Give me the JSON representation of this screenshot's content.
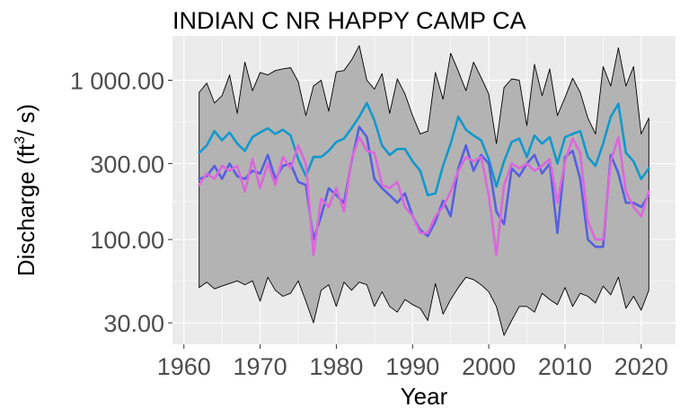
{
  "chart_data": {
    "type": "line",
    "title": "INDIAN C NR HAPPY CAMP CA",
    "xlabel": "Year",
    "ylabel_prefix": "Discharge (ft",
    "ylabel_sup": "3",
    "ylabel_suffix": "/ s)",
    "y_scale": "log",
    "xlim": [
      1958.5,
      2024.5
    ],
    "ylim": [
      22,
      1900
    ],
    "x_ticks": [
      1960,
      1970,
      1980,
      1990,
      2000,
      2010,
      2020
    ],
    "x_tick_labels": [
      "1960",
      "1970",
      "1980",
      "1990",
      "2000",
      "2010",
      "2020"
    ],
    "y_ticks": [
      30,
      100,
      300,
      1000
    ],
    "y_tick_labels": [
      "30.00",
      "100.00",
      "300.00",
      "1 000.00"
    ],
    "grid": true,
    "legend": "none",
    "colors": {
      "panel": "#ebebeb",
      "grid": "#ffffff",
      "band_fill": "#b3b3b3",
      "band_edge": "#000000",
      "teal": "#1199cc",
      "blue": "#5560e0",
      "magenta": "#dd66dd"
    },
    "x": [
      1962,
      1963,
      1964,
      1965,
      1966,
      1967,
      1968,
      1969,
      1970,
      1971,
      1972,
      1973,
      1974,
      1975,
      1976,
      1977,
      1978,
      1979,
      1980,
      1981,
      1982,
      1983,
      1984,
      1985,
      1986,
      1987,
      1988,
      1989,
      1990,
      1991,
      1992,
      1993,
      1994,
      1995,
      1996,
      1997,
      1998,
      1999,
      2000,
      2001,
      2002,
      2003,
      2004,
      2005,
      2006,
      2007,
      2008,
      2009,
      2010,
      2011,
      2012,
      2013,
      2014,
      2015,
      2016,
      2017,
      2018,
      2019,
      2020,
      2021
    ],
    "band_upper": [
      840,
      960,
      720,
      800,
      1080,
      620,
      1300,
      860,
      1120,
      1080,
      1150,
      1180,
      1200,
      980,
      600,
      920,
      1000,
      640,
      1130,
      1150,
      1340,
      1650,
      1000,
      880,
      1100,
      620,
      1020,
      820,
      600,
      460,
      480,
      1120,
      760,
      1480,
      1140,
      860,
      1300,
      1040,
      820,
      400,
      900,
      1020,
      1000,
      520,
      1260,
      800,
      1180,
      600,
      780,
      1030,
      840,
      580,
      460,
      1220,
      920,
      1600,
      920,
      1220,
      460,
      580
    ],
    "band_lower": [
      50,
      54,
      49,
      51,
      53,
      55,
      52,
      55,
      41,
      58,
      48,
      44,
      46,
      55,
      41,
      30,
      48,
      52,
      38,
      54,
      48,
      54,
      52,
      38,
      47,
      38,
      35,
      42,
      39,
      37,
      31,
      53,
      34,
      42,
      50,
      58,
      56,
      52,
      47,
      38,
      25,
      31,
      38,
      38,
      35,
      46,
      42,
      39,
      50,
      38,
      46,
      44,
      40,
      51,
      45,
      58,
      37,
      44,
      36,
      48
    ],
    "series": [
      {
        "color_key": "teal",
        "values": [
          350,
          390,
          480,
          420,
          470,
          400,
          360,
          440,
          470,
          500,
          460,
          490,
          450,
          320,
          250,
          330,
          330,
          360,
          410,
          430,
          500,
          590,
          720,
          560,
          390,
          340,
          370,
          370,
          310,
          270,
          190,
          195,
          290,
          400,
          590,
          490,
          450,
          420,
          320,
          215,
          310,
          410,
          430,
          330,
          450,
          400,
          440,
          300,
          440,
          460,
          480,
          330,
          290,
          400,
          590,
          710,
          350,
          310,
          240,
          280
        ]
      },
      {
        "color_key": "blue",
        "values": [
          240,
          250,
          290,
          240,
          300,
          250,
          240,
          270,
          260,
          340,
          240,
          290,
          300,
          230,
          220,
          100,
          140,
          210,
          190,
          170,
          310,
          510,
          440,
          240,
          210,
          190,
          170,
          195,
          140,
          115,
          105,
          130,
          175,
          140,
          280,
          390,
          270,
          340,
          300,
          150,
          125,
          280,
          250,
          300,
          340,
          260,
          300,
          110,
          330,
          360,
          240,
          100,
          90,
          90,
          340,
          260,
          170,
          170,
          160,
          190
        ]
      },
      {
        "color_key": "magenta",
        "values": [
          220,
          260,
          240,
          290,
          270,
          290,
          200,
          320,
          210,
          300,
          220,
          330,
          280,
          390,
          300,
          80,
          180,
          160,
          210,
          150,
          320,
          440,
          360,
          350,
          220,
          210,
          230,
          160,
          140,
          110,
          110,
          140,
          160,
          200,
          270,
          330,
          310,
          330,
          190,
          80,
          220,
          300,
          280,
          300,
          270,
          290,
          320,
          170,
          310,
          430,
          350,
          130,
          100,
          100,
          310,
          440,
          200,
          160,
          140,
          200
        ]
      }
    ]
  }
}
